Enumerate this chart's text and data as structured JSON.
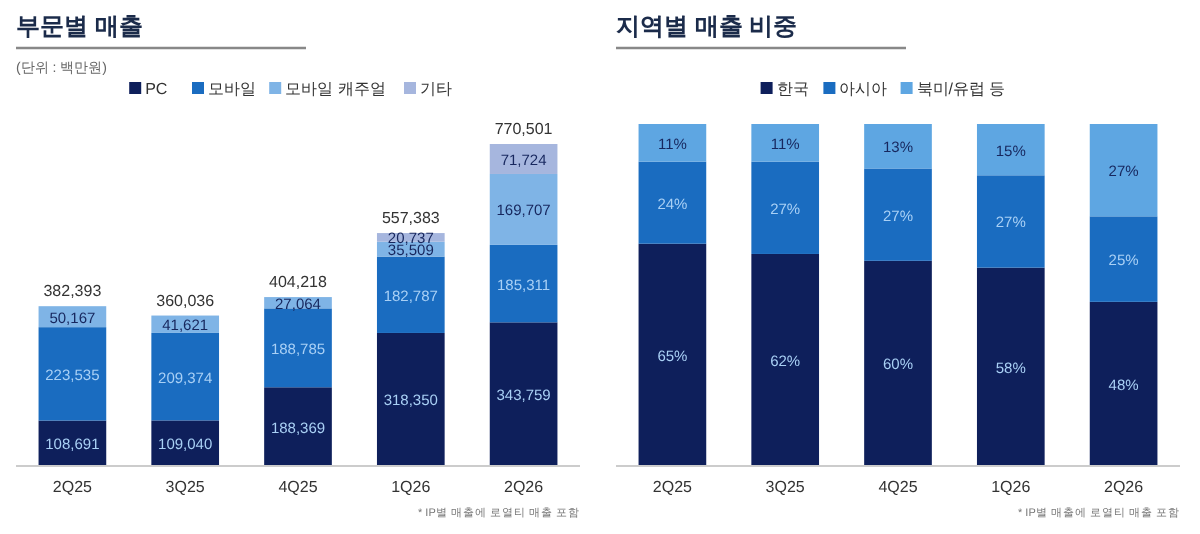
{
  "chart_data": [
    {
      "type": "bar",
      "title": "부문별 매출",
      "subtitle": "(단위 : 백만원)",
      "stacked": true,
      "legend": "top",
      "tick_labels": "x",
      "categories": [
        "2Q25",
        "3Q25",
        "4Q25",
        "1Q26",
        "2Q26"
      ],
      "series": [
        {
          "name": "PC",
          "color": "#0e1f5b",
          "values": [
            108691,
            109040,
            188369,
            318350,
            343759
          ],
          "value_labels": [
            "108,691",
            "109,040",
            "188,369",
            "318,350",
            "343,759"
          ]
        },
        {
          "name": "모바일",
          "color": "#1a6cc0",
          "values": [
            223535,
            209374,
            188785,
            182787,
            185311
          ],
          "value_labels": [
            "223,535",
            "209,374",
            "188,785",
            "182,787",
            "185,311"
          ]
        },
        {
          "name": "모바일 캐주얼",
          "color": "#7fb4e6",
          "values": [
            50167,
            41621,
            27064,
            35509,
            169707
          ],
          "value_labels": [
            "50,167",
            "41,621",
            "27,064",
            "35,509",
            "169,707"
          ]
        },
        {
          "name": "기타",
          "color": "#a6b6de",
          "values": [
            null,
            null,
            null,
            20737,
            71724
          ],
          "value_labels": [
            null,
            null,
            null,
            "20,737",
            "71,724"
          ]
        }
      ],
      "totals": [
        "382,393",
        "360,036",
        "404,218",
        "557,383",
        "770,501"
      ],
      "annotations": [
        "* IP별 매출에 로열티 매출 포함"
      ]
    },
    {
      "type": "bar",
      "title": "지역별 매출 비중",
      "stacked": true,
      "legend": "top",
      "tick_labels": "x",
      "categories": [
        "2Q25",
        "3Q25",
        "4Q25",
        "1Q26",
        "2Q26"
      ],
      "series": [
        {
          "name": "한국",
          "color": "#0e1f5b",
          "values": [
            65,
            62,
            60,
            58,
            48
          ],
          "value_labels": [
            "65%",
            "62%",
            "60%",
            "58%",
            "48%"
          ]
        },
        {
          "name": "아시아",
          "color": "#1a6cc0",
          "values": [
            24,
            27,
            27,
            27,
            25
          ],
          "value_labels": [
            "24%",
            "27%",
            "27%",
            "27%",
            "25%"
          ]
        },
        {
          "name": "북미/유럽 등",
          "color": "#5ea6e2",
          "values": [
            11,
            11,
            13,
            15,
            27
          ],
          "value_labels": [
            "11%",
            "11%",
            "13%",
            "15%",
            "27%"
          ]
        }
      ],
      "annotations": [
        "* IP별 매출에 로열티 매출 포함"
      ]
    }
  ]
}
